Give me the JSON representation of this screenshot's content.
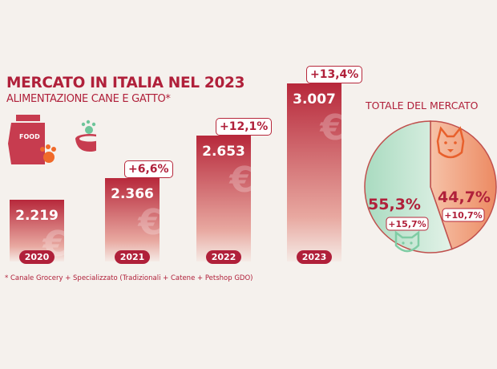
{
  "title": "MERCATO IN ITALIA NEL 2023",
  "subtitle": "ALIMENTAZIONE CANE E GATTO*",
  "footnote": "* Canale Grocery + Specializzato (Tradizionali + Catene + Petshop GDO)",
  "icons": {
    "bag_label": "FOOD"
  },
  "chart_data": [
    {
      "type": "bar",
      "categories": [
        "2020",
        "2021",
        "2022",
        "2023"
      ],
      "values": [
        2219,
        2366,
        2653,
        3007
      ],
      "value_labels": [
        "2.219",
        "2.366",
        "2.653",
        "3.007"
      ],
      "growth_labels": [
        "",
        "+6,6%",
        "+12,1%",
        "+13,4%"
      ],
      "unit": "€",
      "color": "#b7283b"
    },
    {
      "type": "pie",
      "title": "TOTALE DEL MERCATO",
      "slices": [
        {
          "label": "cane",
          "value": 44.7,
          "value_label": "44,7%",
          "growth_label": "+10,7%",
          "color": "#ee9a76",
          "icon": "dog-icon"
        },
        {
          "label": "gatto",
          "value": 55.3,
          "value_label": "55,3%",
          "growth_label": "+15,7%",
          "color": "#bfe3cd",
          "icon": "cat-icon"
        }
      ]
    }
  ]
}
